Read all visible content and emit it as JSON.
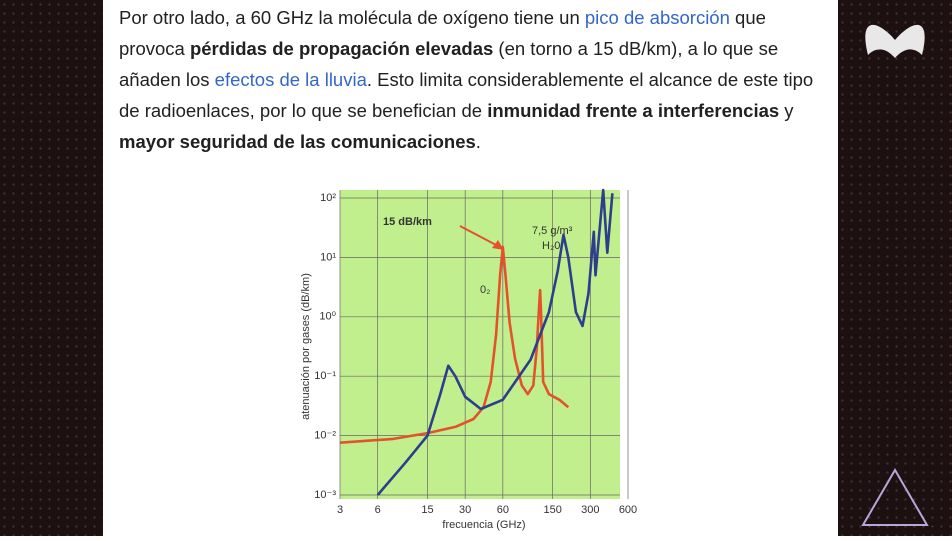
{
  "paragraph": [
    {
      "text": "Por otro lado, a 60 GHz la molécula de oxígeno tiene un ",
      "style": "normal"
    },
    {
      "text": "pico de absorción",
      "style": "link"
    },
    {
      "text": " que provoca ",
      "style": "normal"
    },
    {
      "text": "pérdidas de propagación elevadas",
      "style": "bold"
    },
    {
      "text": " (en torno a 15 dB/km), a lo que se añaden los ",
      "style": "normal"
    },
    {
      "text": "efectos de la lluvia",
      "style": "link"
    },
    {
      "text": ". Esto limita considerablemente el alcance de este tipo de radioenlaces, por lo que se benefician de ",
      "style": "normal"
    },
    {
      "text": "inmunidad frente a interferencias",
      "style": "bold"
    },
    {
      "text": " y ",
      "style": "normal"
    },
    {
      "text": "mayor seguridad de las comunicaciones",
      "style": "bold"
    },
    {
      "text": ".",
      "style": "normal"
    }
  ],
  "chart_data": {
    "type": "line",
    "xlabel": "frecuencia (GHz)",
    "ylabel": "atenuación por gases (dB/km)",
    "xscale": "log",
    "yscale": "log",
    "xlim": [
      3,
      600
    ],
    "ylim": [
      0.001,
      100
    ],
    "xticks": [
      3,
      6,
      15,
      30,
      60,
      150,
      300,
      600
    ],
    "yticks": [
      {
        "value": 100,
        "label": "10²"
      },
      {
        "value": 10,
        "label": "10¹"
      },
      {
        "value": 1,
        "label": "10⁰"
      },
      {
        "value": 0.1,
        "label": "10⁻¹"
      },
      {
        "value": 0.01,
        "label": "10⁻²"
      },
      {
        "value": 0.001,
        "label": "10⁻³"
      }
    ],
    "grid": true,
    "background": "#c2ef8e",
    "series": [
      {
        "color": "#e4522b",
        "x": [
          3,
          8,
          15,
          25,
          35,
          42,
          48,
          53,
          57,
          60,
          63,
          68,
          75,
          85,
          95,
          105,
          112,
          117,
          119,
          121,
          126,
          140,
          170,
          200
        ],
        "values": [
          0.0076,
          0.0088,
          0.011,
          0.014,
          0.019,
          0.03,
          0.08,
          0.5,
          5,
          15,
          5,
          0.8,
          0.2,
          0.07,
          0.05,
          0.07,
          0.3,
          1.5,
          2.8,
          1.2,
          0.08,
          0.05,
          0.04,
          0.03
        ]
      },
      {
        "color": "#2e3d8c",
        "x": [
          6,
          10,
          15,
          19,
          22,
          25,
          30,
          40,
          60,
          100,
          140,
          165,
          183,
          200,
          230,
          260,
          290,
          320,
          330,
          350,
          380,
          410,
          450
        ],
        "values": [
          0.001,
          0.0035,
          0.01,
          0.05,
          0.15,
          0.1,
          0.045,
          0.028,
          0.04,
          0.19,
          1.2,
          6,
          24,
          10,
          1.2,
          0.7,
          2.5,
          27,
          5,
          20,
          136,
          12,
          120
        ]
      }
    ],
    "annotations": [
      "15 dB/km",
      "7,5 g/m³",
      "H₂0",
      "0₂"
    ]
  }
}
